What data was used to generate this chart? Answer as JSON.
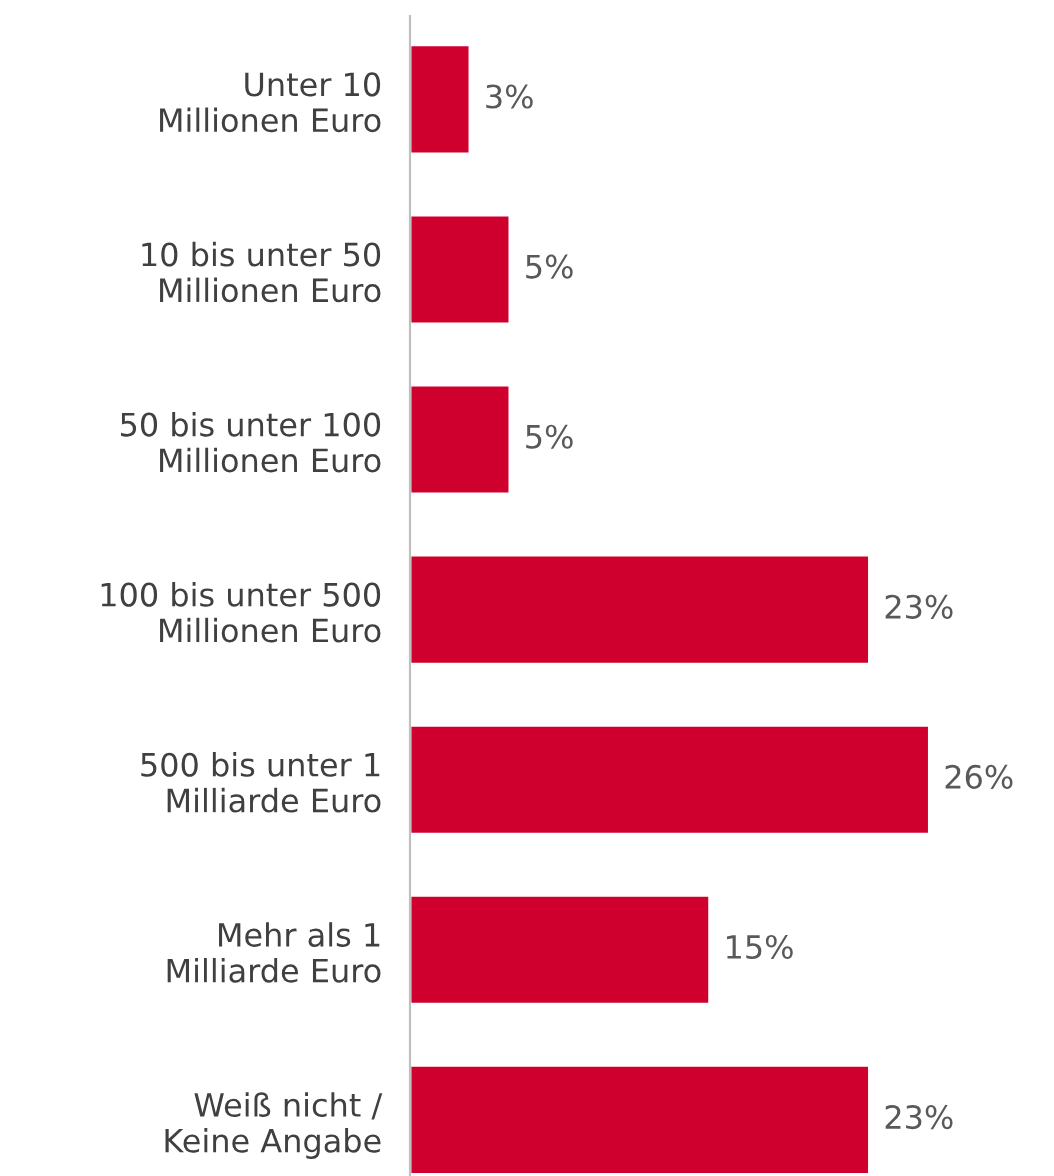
{
  "chart_data": {
    "type": "bar",
    "orientation": "horizontal",
    "color": "#d0002e",
    "categories": [
      "Unter 10\nMillionen Euro",
      "10 bis unter 50\nMillionen Euro",
      "50 bis unter 100\nMillionen Euro",
      "100 bis unter 500\nMillionen Euro",
      "500 bis unter 1\nMilliarde Euro",
      "Mehr als 1\nMilliarde Euro",
      "Weiß nicht /\nKeine Angabe"
    ],
    "values": [
      3,
      5,
      5,
      23,
      26,
      15,
      23
    ],
    "value_labels": [
      "3%",
      "5%",
      "5%",
      "23%",
      "26%",
      "15%",
      "23%"
    ],
    "grid": false,
    "legend": false
  }
}
